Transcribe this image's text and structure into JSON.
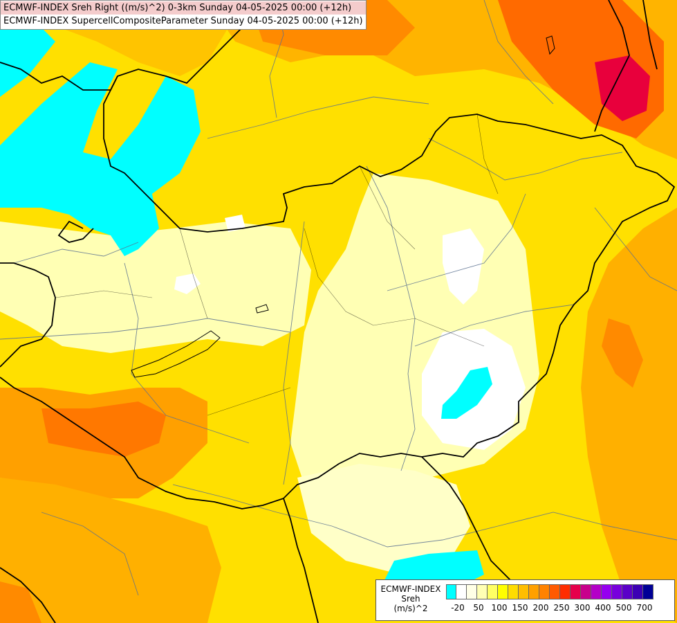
{
  "title": {
    "line1": "ECMWF-INDEX Sreh Right ((m/s)^2) 0-3km Sunday 04-05-2025 00:00 (+12h)",
    "line2": "ECMWF-INDEX SupercellCompositeParameter Sunday 04-05-2025 00:00 (+12h)"
  },
  "legend": {
    "line1": "ECMWF-INDEX",
    "line2": "Sreh",
    "line3": "(m/s)^2",
    "colors": [
      "#00ffff",
      "#ffffff",
      "#ffffe6",
      "#ffffb4",
      "#ffff64",
      "#ffff00",
      "#ffdc00",
      "#ffbe00",
      "#ffa000",
      "#ff8200",
      "#ff5a00",
      "#ff2d00",
      "#e6004b",
      "#c8008c",
      "#b400c8",
      "#9600f0",
      "#7800dc",
      "#5a00c8",
      "#3c00b4",
      "#000096"
    ],
    "ticks": [
      "-20",
      "50",
      "100",
      "150",
      "200",
      "250",
      "300",
      "400",
      "500",
      "700"
    ]
  },
  "palette": {
    "low_cyan": "#00ffff",
    "white": "#ffffff",
    "pale_yellow": "#ffffc0",
    "yellow": "#ffe000",
    "orange": "#ffa000",
    "dark_orange": "#ff6a00",
    "red": "#e8003c",
    "border_color": "#000000",
    "river_color": "#5a7090"
  }
}
